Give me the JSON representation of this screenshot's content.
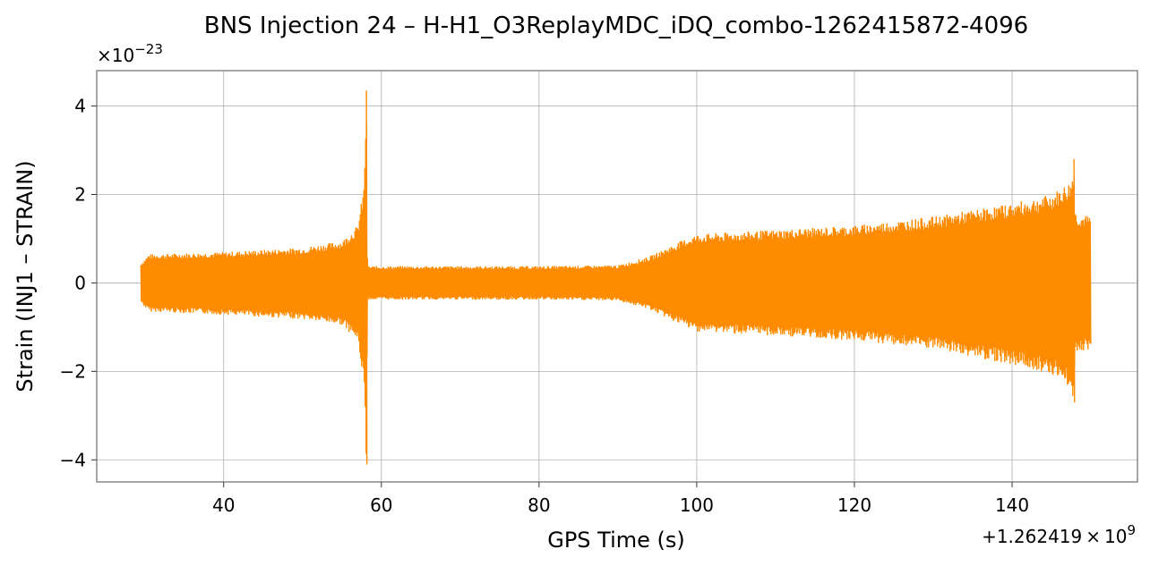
{
  "chart_data": {
    "type": "line",
    "title": "BNS Injection 24 – H-H1_O3ReplayMDC_iDQ_combo-1262415872-4096",
    "xlabel": "GPS Time (s)",
    "ylabel": "Strain (INJ1 – STRAIN)",
    "x_offset_label": "+1.262419 × 10^9",
    "y_scale_label": "×10^-23",
    "x_offset_text": {
      "base": "+1.262419 × 10",
      "exp": "9"
    },
    "y_scale_text": {
      "base": "×10",
      "exp": "−23"
    },
    "xlim": [
      23.9,
      155.9
    ],
    "ylim": [
      -4.5,
      4.8
    ],
    "x_ticks": [
      40,
      60,
      80,
      100,
      120,
      140
    ],
    "x_tick_labels": [
      "40",
      "60",
      "80",
      "100",
      "120",
      "140"
    ],
    "y_ticks": [
      -4,
      -2,
      0,
      2,
      4
    ],
    "y_tick_labels": [
      "−4",
      "−2",
      "0",
      "2",
      "4"
    ],
    "grid": true,
    "series": [
      {
        "color": "#ff8c00",
        "x_range": [
          29.5,
          150.0
        ],
        "envelope": {
          "x": [
            29.5,
            30.5,
            40,
            50,
            55,
            57,
            57.8,
            58.1,
            58.25,
            58.5,
            60,
            80,
            90,
            94,
            98,
            100,
            110,
            120,
            130,
            140,
            145,
            147.5,
            147.85,
            148.0,
            148.3,
            150.0
          ],
          "upper": [
            0.45,
            0.65,
            0.7,
            0.8,
            0.95,
            1.3,
            2.2,
            4.35,
            0.38,
            0.38,
            0.38,
            0.38,
            0.4,
            0.6,
            0.95,
            1.1,
            1.2,
            1.3,
            1.5,
            1.8,
            2.0,
            2.3,
            2.8,
            1.6,
            1.55,
            1.5
          ],
          "lower": [
            -0.45,
            -0.65,
            -0.72,
            -0.82,
            -0.95,
            -1.3,
            -2.3,
            -4.1,
            -0.38,
            -0.38,
            -0.38,
            -0.38,
            -0.4,
            -0.6,
            -0.95,
            -1.1,
            -1.2,
            -1.3,
            -1.5,
            -1.85,
            -2.05,
            -2.4,
            -2.7,
            -1.6,
            -1.55,
            -1.5
          ]
        }
      }
    ]
  }
}
